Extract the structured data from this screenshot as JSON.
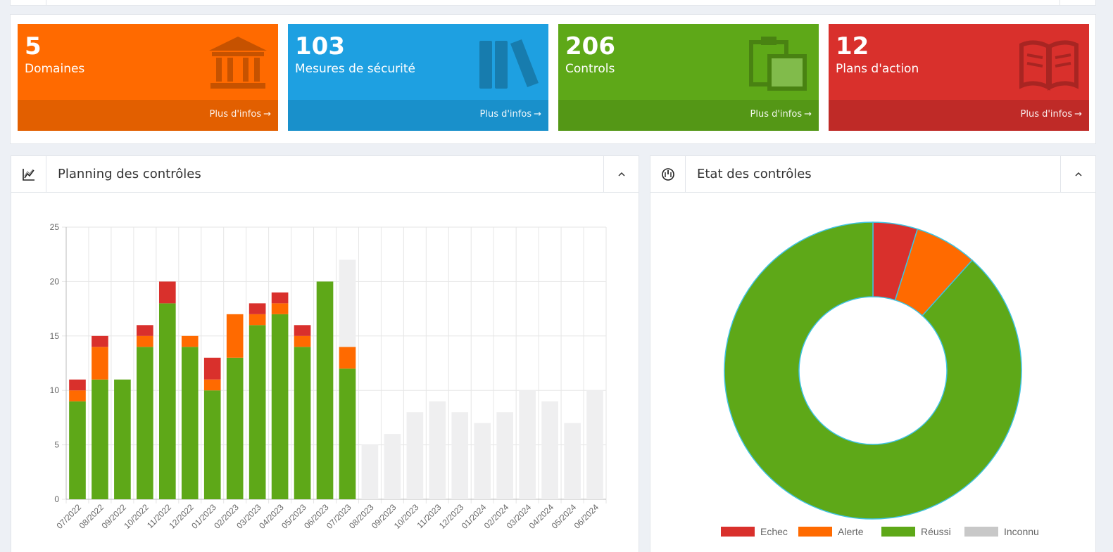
{
  "colors": {
    "orange": "#ff6a00",
    "blue": "#1ea0e1",
    "green": "#5ea818",
    "red": "#d9302c",
    "unknown": "#efeff0"
  },
  "tiles": [
    {
      "value": "5",
      "label": "Domaines",
      "link": "Plus d'infos",
      "icon": "bank-icon"
    },
    {
      "value": "103",
      "label": "Mesures de sécurité",
      "link": "Plus d'infos",
      "icon": "books-icon"
    },
    {
      "value": "206",
      "label": "Controls",
      "link": "Plus d'infos",
      "icon": "clipboard-icon"
    },
    {
      "value": "12",
      "label": "Plans d'action",
      "link": "Plus d'infos",
      "icon": "open-book-icon"
    }
  ],
  "planning": {
    "title": "Planning des contrôles",
    "icon": "line-chart-icon",
    "collapse_icon": "chevron-up-icon"
  },
  "etat": {
    "title": "Etat des contrôles",
    "icon": "gauge-icon",
    "collapse_icon": "chevron-up-icon"
  },
  "chart_data": [
    {
      "type": "bar",
      "stacked": true,
      "categories": [
        "07/2022",
        "08/2022",
        "09/2022",
        "10/2022",
        "11/2022",
        "12/2022",
        "01/2023",
        "02/2023",
        "03/2023",
        "04/2023",
        "05/2023",
        "06/2023",
        "07/2023",
        "08/2023",
        "09/2023",
        "10/2023",
        "11/2023",
        "12/2023",
        "01/2024",
        "02/2024",
        "03/2024",
        "04/2024",
        "05/2024",
        "06/2024"
      ],
      "series": [
        {
          "key": "success",
          "color": "#5ea818",
          "values": [
            9,
            11,
            11,
            14,
            18,
            14,
            10,
            13,
            16,
            17,
            14,
            20,
            12,
            0,
            0,
            0,
            0,
            0,
            0,
            0,
            0,
            0,
            0,
            0
          ]
        },
        {
          "key": "alert",
          "color": "#ff6a00",
          "values": [
            1,
            3,
            0,
            1,
            0,
            1,
            1,
            4,
            1,
            1,
            1,
            0,
            2,
            0,
            0,
            0,
            0,
            0,
            0,
            0,
            0,
            0,
            0,
            0
          ]
        },
        {
          "key": "fail",
          "color": "#d9302c",
          "values": [
            1,
            1,
            0,
            1,
            2,
            0,
            2,
            0,
            1,
            1,
            1,
            0,
            0,
            0,
            0,
            0,
            0,
            0,
            0,
            0,
            0,
            0,
            0,
            0
          ]
        },
        {
          "key": "unknown",
          "color": "#efeff0",
          "values": [
            0,
            0,
            0,
            0,
            0,
            0,
            0,
            0,
            0,
            0,
            0,
            0,
            8,
            5,
            6,
            8,
            9,
            8,
            7,
            8,
            10,
            9,
            7,
            10
          ]
        }
      ],
      "ylim": [
        0,
        25
      ],
      "yticks": [
        "0",
        "5",
        "10",
        "15",
        "20",
        "25"
      ],
      "grid": true,
      "legend": "none"
    },
    {
      "type": "pie",
      "doughnut": true,
      "labels": [
        "Echec",
        "Alerte",
        "Réussi",
        "Inconnu"
      ],
      "values": [
        10,
        14,
        182,
        0
      ],
      "colors": [
        "#d9302c",
        "#ff6a00",
        "#5ea818",
        "#c8c8c8"
      ],
      "legend": "bottom"
    }
  ]
}
